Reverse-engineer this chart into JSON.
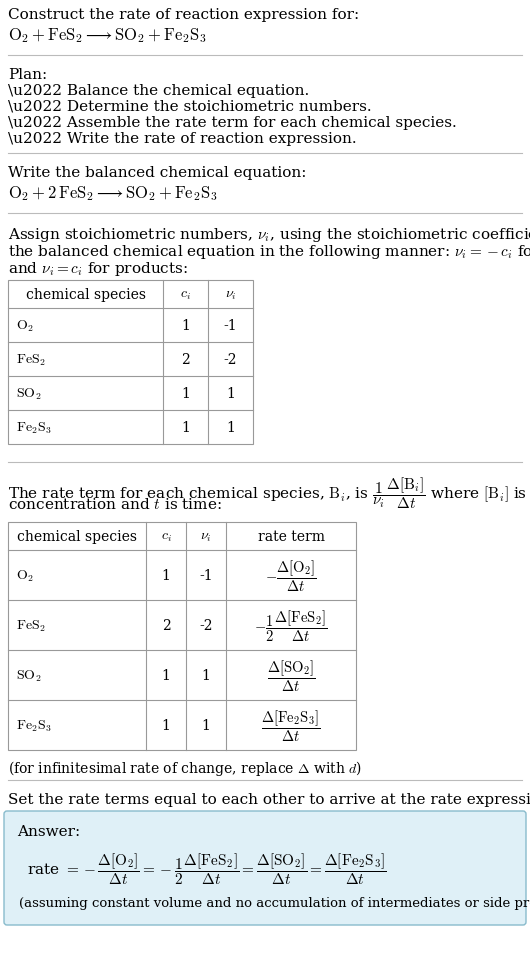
{
  "bg_color": "#ffffff",
  "text_color": "#000000",
  "line_color": "#bbbbbb",
  "answer_box_color": "#dff0f7",
  "answer_box_border": "#88bbcc",
  "title_text": "Construct the rate of reaction expression for:",
  "reaction_unbalanced": "$\\mathrm{O_2 + FeS_2 \\longrightarrow SO_2 + Fe_2S_3}$",
  "plan_header": "Plan:",
  "plan_items": [
    "\\u2022 Balance the chemical equation.",
    "\\u2022 Determine the stoichiometric numbers.",
    "\\u2022 Assemble the rate term for each chemical species.",
    "\\u2022 Write the rate of reaction expression."
  ],
  "balanced_header": "Write the balanced chemical equation:",
  "reaction_balanced": "$\\mathrm{O_2 + 2\\,FeS_2 \\longrightarrow SO_2 + Fe_2S_3}$",
  "stoich_text_lines": [
    "Assign stoichiometric numbers, $\\nu_i$, using the stoichiometric coefficients, $c_i$, from",
    "the balanced chemical equation in the following manner: $\\nu_i = -c_i$ for reactants",
    "and $\\nu_i = c_i$ for products:"
  ],
  "table1_headers": [
    "chemical species",
    "$c_i$",
    "$\\nu_i$"
  ],
  "table1_rows": [
    [
      "$\\mathrm{O_2}$",
      "1",
      "-1"
    ],
    [
      "$\\mathrm{FeS_2}$",
      "2",
      "-2"
    ],
    [
      "$\\mathrm{SO_2}$",
      "1",
      "1"
    ],
    [
      "$\\mathrm{Fe_2S_3}$",
      "1",
      "1"
    ]
  ],
  "rate_text_lines": [
    "The rate term for each chemical species, $\\mathrm{B}_i$, is $\\dfrac{1}{\\nu_i}\\dfrac{\\Delta[\\mathrm{B}_i]}{\\Delta t}$ where $[\\mathrm{B}_i]$ is the amount",
    "concentration and $t$ is time:"
  ],
  "table2_headers": [
    "chemical species",
    "$c_i$",
    "$\\nu_i$",
    "rate term"
  ],
  "table2_rows": [
    [
      "$\\mathrm{O_2}$",
      "1",
      "-1",
      "$-\\dfrac{\\Delta[\\mathrm{O_2}]}{\\Delta t}$"
    ],
    [
      "$\\mathrm{FeS_2}$",
      "2",
      "-2",
      "$-\\dfrac{1}{2}\\dfrac{\\Delta[\\mathrm{FeS_2}]}{\\Delta t}$"
    ],
    [
      "$\\mathrm{SO_2}$",
      "1",
      "1",
      "$\\dfrac{\\Delta[\\mathrm{SO_2}]}{\\Delta t}$"
    ],
    [
      "$\\mathrm{Fe_2S_3}$",
      "1",
      "1",
      "$\\dfrac{\\Delta[\\mathrm{Fe_2S_3}]}{\\Delta t}$"
    ]
  ],
  "infinitesimal_note": "(for infinitesimal rate of change, replace $\\Delta$ with $d$)",
  "rate_expression_header": "Set the rate terms equal to each other to arrive at the rate expression:",
  "answer_label": "Answer:",
  "answer_note": "(assuming constant volume and no accumulation of intermediates or side products)"
}
